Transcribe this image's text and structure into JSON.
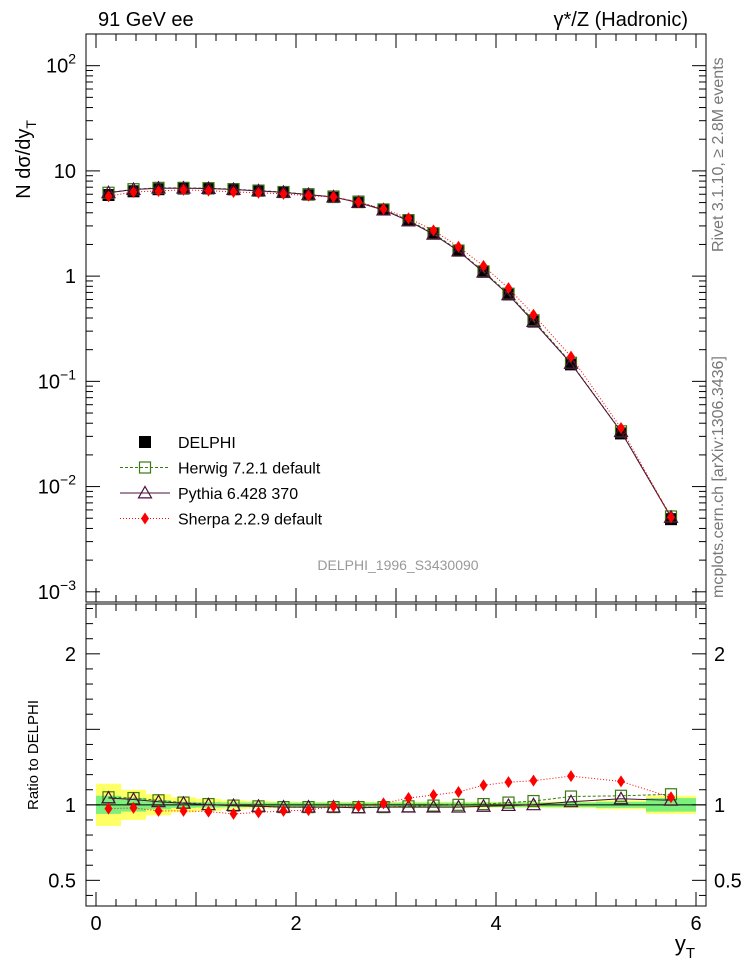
{
  "header": {
    "energy_label": "91 GeV ee",
    "process_label": "γ*/Z (Hadronic)"
  },
  "side": {
    "rivet": "Rivet 3.1.10, ≥ 2.8M events",
    "source": "mcplots.cern.ch [arXiv:1306.3436]"
  },
  "watermark": "DELPHI_1996_S3430090",
  "chart_data": [
    {
      "type": "scatter",
      "panel": "main",
      "ylabel": "N dσ/dy_T",
      "yscale": "log",
      "ylim": [
        0.0008,
        200
      ],
      "yticks": [
        {
          "v": 0.001,
          "base": "10",
          "exp": "−3"
        },
        {
          "v": 0.01,
          "base": "10",
          "exp": "−2"
        },
        {
          "v": 0.1,
          "base": "10",
          "exp": "−1"
        },
        {
          "v": 1,
          "base": "1",
          "exp": ""
        },
        {
          "v": 10,
          "base": "10",
          "exp": ""
        },
        {
          "v": 100,
          "base": "10",
          "exp": "2"
        }
      ],
      "xlim": [
        -0.1,
        6.1
      ],
      "x": [
        0.125,
        0.375,
        0.625,
        0.875,
        1.125,
        1.375,
        1.625,
        1.875,
        2.125,
        2.375,
        2.625,
        2.875,
        3.125,
        3.375,
        3.625,
        3.875,
        4.125,
        4.375,
        4.75,
        5.25,
        5.75
      ],
      "series": [
        {
          "name": "DELPHI",
          "marker": "square-filled",
          "color": "#000000",
          "values": [
            5.9,
            6.4,
            6.7,
            6.8,
            6.8,
            6.7,
            6.5,
            6.3,
            6.0,
            5.7,
            5.1,
            4.3,
            3.4,
            2.55,
            1.75,
            1.1,
            0.67,
            0.37,
            0.145,
            0.032,
            0.0049
          ]
        },
        {
          "name": "Herwig 7.2.1 default",
          "marker": "square-open",
          "color": "#3a7a10",
          "dash": "3,2",
          "values": [
            6.2,
            6.7,
            6.9,
            6.9,
            6.85,
            6.7,
            6.5,
            6.3,
            5.95,
            5.65,
            5.05,
            4.3,
            3.4,
            2.55,
            1.75,
            1.11,
            0.68,
            0.38,
            0.15,
            0.0335,
            0.0052
          ]
        },
        {
          "name": "Pythia 6.428 370",
          "marker": "triangle-open",
          "color": "#4b0f3d",
          "dash": "",
          "values": [
            6.2,
            6.65,
            6.85,
            6.85,
            6.8,
            6.65,
            6.45,
            6.25,
            5.95,
            5.65,
            5.0,
            4.25,
            3.35,
            2.5,
            1.73,
            1.09,
            0.665,
            0.37,
            0.148,
            0.0333,
            0.0051
          ]
        },
        {
          "name": "Sherpa 2.2.9 default",
          "marker": "diamond-filled",
          "color": "#ff0000",
          "dash": "1,2",
          "values": [
            5.75,
            6.3,
            6.45,
            6.6,
            6.5,
            6.3,
            6.2,
            6.05,
            5.8,
            5.65,
            5.05,
            4.35,
            3.55,
            2.72,
            1.9,
            1.25,
            0.77,
            0.43,
            0.172,
            0.036,
            0.0051
          ]
        }
      ]
    },
    {
      "type": "scatter",
      "panel": "ratio",
      "ylabel": "Ratio to DELPHI",
      "ylim": [
        0.33,
        2.33
      ],
      "yticks": [
        {
          "v": 0.5,
          "label": "0.5"
        },
        {
          "v": 1,
          "label": "1"
        },
        {
          "v": 2,
          "label": "2"
        }
      ],
      "xlim": [
        -0.1,
        6.1
      ],
      "xticks": [
        0,
        2,
        4,
        6
      ],
      "xlabel": "y_T",
      "x": [
        0.125,
        0.375,
        0.625,
        0.875,
        1.125,
        1.375,
        1.625,
        1.875,
        2.125,
        2.375,
        2.625,
        2.875,
        3.125,
        3.375,
        3.625,
        3.875,
        4.125,
        4.375,
        4.75,
        5.25,
        5.75
      ],
      "bins": [
        [
          0,
          0.25
        ],
        [
          0.25,
          0.5
        ],
        [
          0.5,
          0.75
        ],
        [
          0.75,
          1.0
        ],
        [
          1.0,
          1.25
        ],
        [
          1.25,
          1.5
        ],
        [
          1.5,
          1.75
        ],
        [
          1.75,
          2.0
        ],
        [
          2.0,
          2.25
        ],
        [
          2.25,
          2.5
        ],
        [
          2.5,
          2.75
        ],
        [
          2.75,
          3.0
        ],
        [
          3.0,
          3.25
        ],
        [
          3.25,
          3.5
        ],
        [
          3.5,
          3.75
        ],
        [
          3.75,
          4.0
        ],
        [
          4.0,
          4.25
        ],
        [
          4.25,
          4.5
        ],
        [
          4.5,
          5.0
        ],
        [
          5.0,
          5.5
        ],
        [
          5.5,
          6.0
        ]
      ],
      "band_stat": [
        0.06,
        0.045,
        0.03,
        0.02,
        0.018,
        0.016,
        0.015,
        0.015,
        0.015,
        0.015,
        0.015,
        0.015,
        0.015,
        0.015,
        0.015,
        0.015,
        0.015,
        0.015,
        0.016,
        0.02,
        0.045
      ],
      "band_total": [
        0.14,
        0.1,
        0.07,
        0.05,
        0.04,
        0.03,
        0.025,
        0.022,
        0.02,
        0.02,
        0.02,
        0.02,
        0.02,
        0.02,
        0.02,
        0.02,
        0.02,
        0.02,
        0.022,
        0.03,
        0.06
      ],
      "band_colors": {
        "total": "#ffff66",
        "stat": "#7cf07c"
      },
      "series": [
        {
          "name": "Herwig 7.2.1 default",
          "marker": "square-open",
          "color": "#3a7a10",
          "dash": "3,2",
          "values": [
            1.05,
            1.045,
            1.03,
            1.015,
            1.005,
            0.995,
            0.99,
            0.985,
            0.985,
            0.985,
            0.985,
            0.985,
            0.99,
            0.995,
            1.0,
            1.005,
            1.015,
            1.025,
            1.055,
            1.06,
            1.07
          ]
        },
        {
          "name": "Pythia 6.428 370",
          "marker": "triangle-open",
          "color": "#4b0f3d",
          "dash": "",
          "values": [
            1.045,
            1.035,
            1.02,
            1.01,
            1.0,
            0.995,
            0.99,
            0.985,
            0.985,
            0.985,
            0.98,
            0.985,
            0.985,
            0.985,
            0.985,
            0.99,
            0.995,
            1.0,
            1.02,
            1.04,
            1.03
          ]
        },
        {
          "name": "Sherpa 2.2.9 default",
          "marker": "diamond-filled",
          "color": "#ff0000",
          "dash": "1,2",
          "values": [
            0.975,
            0.98,
            0.96,
            0.96,
            0.955,
            0.94,
            0.95,
            0.96,
            0.965,
            0.99,
            0.99,
            1.01,
            1.045,
            1.065,
            1.085,
            1.13,
            1.15,
            1.16,
            1.19,
            1.155,
            1.05
          ]
        }
      ]
    }
  ]
}
